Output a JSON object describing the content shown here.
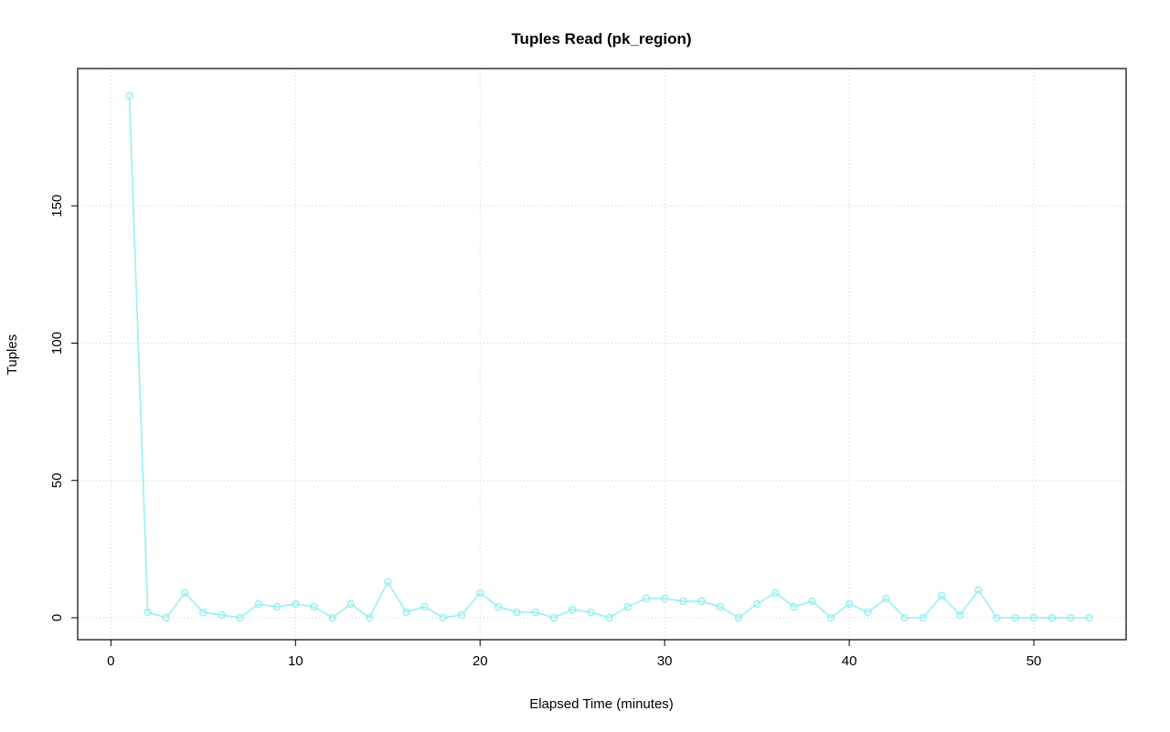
{
  "chart_data": {
    "type": "line",
    "title": "Tuples Read (pk_region)",
    "xlabel": "Elapsed Time (minutes)",
    "ylabel": "Tuples",
    "series_name": "Tuples Read",
    "marker": "open-circle",
    "series_color": "#99F0F0",
    "grid": true,
    "legend": "none",
    "xticks": [
      0,
      10,
      20,
      30,
      40,
      50
    ],
    "yticks": [
      0,
      50,
      100,
      150
    ],
    "xlim": [
      -1.8,
      55
    ],
    "ylim": [
      -8,
      200
    ],
    "x": [
      1,
      2,
      3,
      4,
      5,
      6,
      7,
      8,
      9,
      10,
      11,
      12,
      13,
      14,
      15,
      16,
      17,
      18,
      19,
      20,
      21,
      22,
      23,
      24,
      25,
      26,
      27,
      28,
      29,
      30,
      31,
      32,
      33,
      34,
      35,
      36,
      37,
      38,
      39,
      40,
      41,
      42,
      43,
      44,
      45,
      46,
      47,
      48,
      49,
      50,
      51,
      52,
      53
    ],
    "y": [
      190,
      2,
      0,
      9,
      2,
      1,
      0,
      5,
      4,
      5,
      4,
      0,
      5,
      0,
      13,
      2,
      4,
      0,
      1,
      9,
      4,
      2,
      2,
      0,
      3,
      2,
      0,
      4,
      7,
      7,
      6,
      6,
      4,
      0,
      5,
      9,
      4,
      6,
      0,
      5,
      2,
      7,
      0,
      0,
      8,
      1,
      10,
      0,
      0,
      0,
      0,
      0,
      0
    ]
  }
}
